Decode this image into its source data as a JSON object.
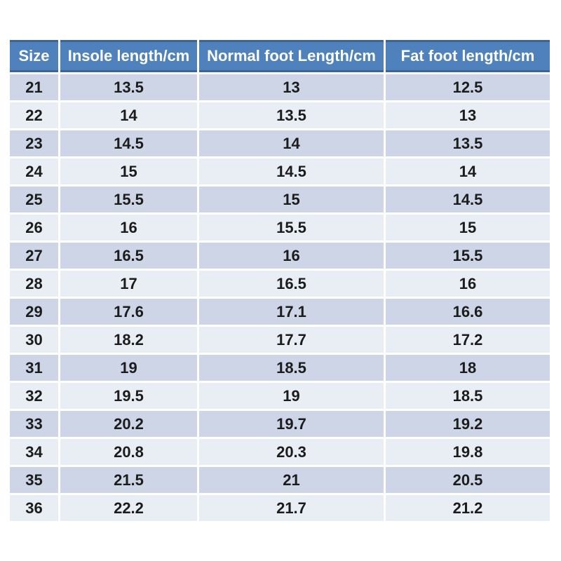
{
  "chart_data": {
    "type": "table",
    "columns": [
      "Size",
      "Insole length/cm",
      "Normal foot Length/cm",
      "Fat foot length/cm"
    ],
    "rows": [
      [
        21,
        13.5,
        13,
        12.5
      ],
      [
        22,
        14,
        13.5,
        13
      ],
      [
        23,
        14.5,
        14,
        13.5
      ],
      [
        24,
        15,
        14.5,
        14
      ],
      [
        25,
        15.5,
        15,
        14.5
      ],
      [
        26,
        16,
        15.5,
        15
      ],
      [
        27,
        16.5,
        16,
        15.5
      ],
      [
        28,
        17,
        16.5,
        16
      ],
      [
        29,
        17.6,
        17.1,
        16.6
      ],
      [
        30,
        18.2,
        17.7,
        17.2
      ],
      [
        31,
        19,
        18.5,
        18
      ],
      [
        32,
        19.5,
        19,
        18.5
      ],
      [
        33,
        20.2,
        19.7,
        19.2
      ],
      [
        34,
        20.8,
        20.3,
        19.8
      ],
      [
        35,
        21.5,
        21,
        20.5
      ],
      [
        36,
        22.2,
        21.7,
        21.2
      ]
    ],
    "layout": {
      "banded_rows": true,
      "gridline_color": "#ffffff",
      "header_position": "top"
    }
  },
  "colors": {
    "header_bg": "#4f81bd",
    "header_border": "#3c6496",
    "header_text": "#ffffff",
    "row_dark": "#cdd5e6",
    "row_light": "#e9edf4",
    "body_text": "#1c1c1c",
    "gridline": "#ffffff"
  }
}
